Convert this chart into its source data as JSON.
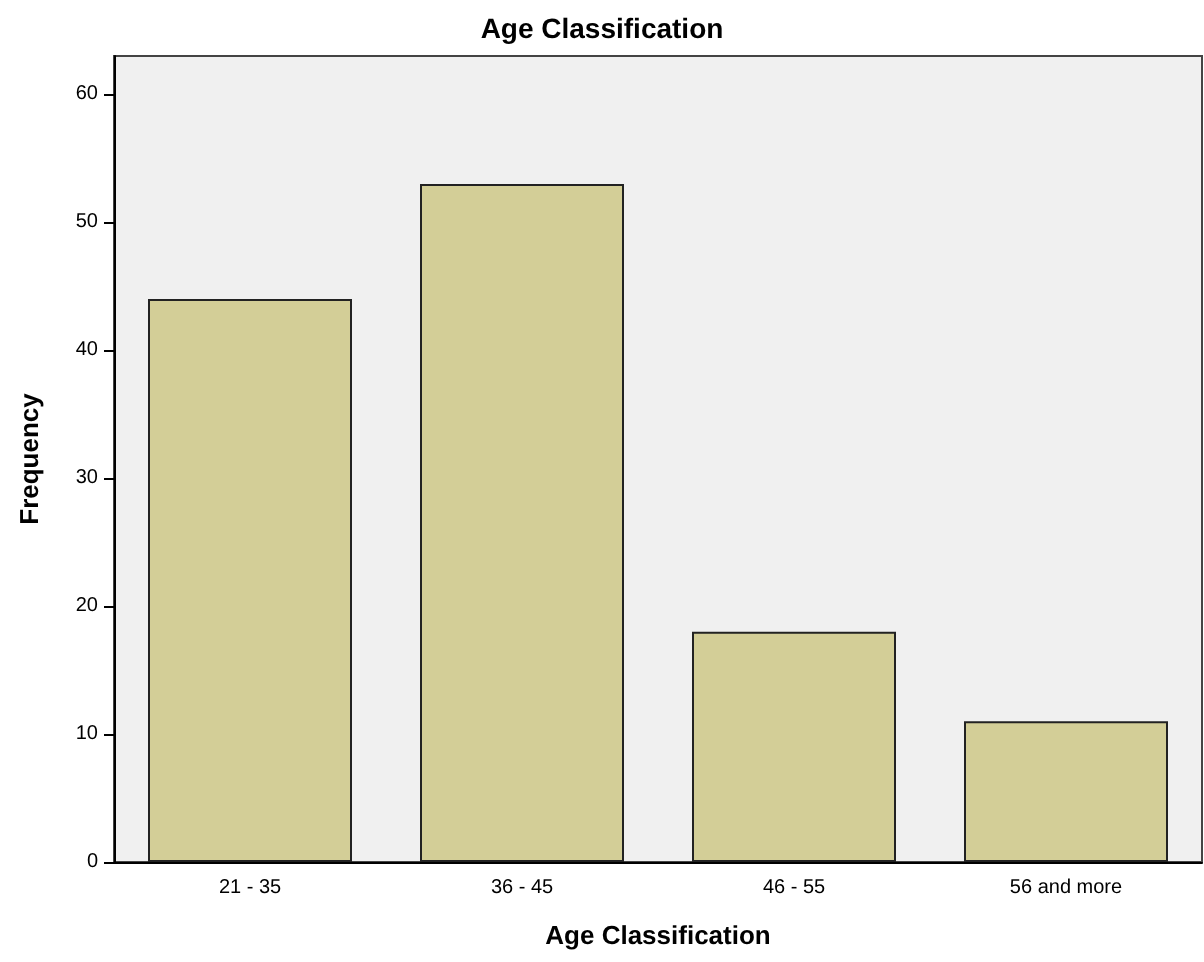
{
  "chart_data": {
    "type": "bar",
    "title": "Age Classification",
    "xlabel": "Age Classification",
    "ylabel": "Frequency",
    "categories": [
      "21 - 35",
      "36 - 45",
      "46 - 55",
      "56 and more"
    ],
    "values": [
      44,
      53,
      18,
      11
    ],
    "color": "#d3ce97",
    "ylim": [
      0,
      63
    ],
    "yticks": [
      0,
      10,
      20,
      30,
      40,
      50,
      60
    ],
    "grid": false
  }
}
